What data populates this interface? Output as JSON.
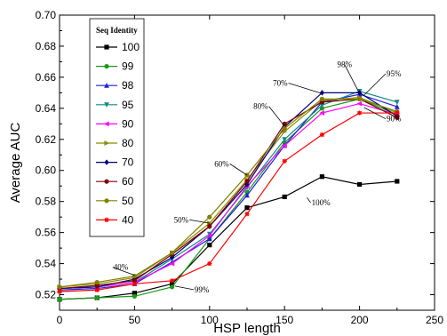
{
  "chart_data": {
    "type": "line",
    "title": "",
    "xlabel": "HSP length",
    "ylabel": "Average AUC",
    "xlim": [
      0,
      250
    ],
    "ylim": [
      0.51,
      0.7
    ],
    "xticks": [
      0,
      50,
      100,
      150,
      200,
      250
    ],
    "yticks": [
      0.52,
      0.54,
      0.56,
      0.58,
      0.6,
      0.62,
      0.64,
      0.66,
      0.68,
      0.7
    ],
    "ytick_labels": [
      "0.52",
      "0.54",
      "0.56",
      "0.58",
      "0.60",
      "0.62",
      "0.64",
      "0.66",
      "0.68",
      "0.70"
    ],
    "x": [
      0,
      25,
      50,
      75,
      100,
      125,
      150,
      175,
      200,
      225
    ],
    "grid": false,
    "legend": {
      "title": "Seq Identity",
      "placement": "top-left"
    },
    "series": [
      {
        "name": "100",
        "color": "#000000",
        "marker": "square",
        "values": [
          0.517,
          0.518,
          0.521,
          0.527,
          0.552,
          0.576,
          0.583,
          0.596,
          0.591,
          0.593
        ]
      },
      {
        "name": "99",
        "color": "#1a9a1a",
        "marker": "circle",
        "values": [
          0.517,
          0.518,
          0.519,
          0.525,
          0.556,
          0.586,
          0.618,
          0.64,
          0.646,
          0.636
        ]
      },
      {
        "name": "98",
        "color": "#1f1fe0",
        "marker": "triangle-up",
        "values": [
          0.523,
          0.524,
          0.527,
          0.541,
          0.556,
          0.584,
          0.616,
          0.644,
          0.649,
          0.641
        ]
      },
      {
        "name": "95",
        "color": "#138a8a",
        "marker": "triangle-down",
        "values": [
          0.524,
          0.525,
          0.528,
          0.543,
          0.559,
          0.589,
          0.62,
          0.642,
          0.651,
          0.644
        ]
      },
      {
        "name": "90",
        "color": "#ff00ff",
        "marker": "triangle-left",
        "values": [
          0.524,
          0.525,
          0.528,
          0.54,
          0.558,
          0.59,
          0.616,
          0.637,
          0.643,
          0.636
        ]
      },
      {
        "name": "80",
        "color": "#8c8c00",
        "marker": "triangle-right",
        "values": [
          0.525,
          0.527,
          0.531,
          0.547,
          0.566,
          0.594,
          0.625,
          0.645,
          0.647,
          0.637
        ]
      },
      {
        "name": "70",
        "color": "#00007a",
        "marker": "diamond",
        "values": [
          0.524,
          0.525,
          0.53,
          0.544,
          0.564,
          0.591,
          0.628,
          0.65,
          0.65,
          0.635
        ]
      },
      {
        "name": "60",
        "color": "#800000",
        "marker": "circle",
        "values": [
          0.524,
          0.526,
          0.529,
          0.546,
          0.564,
          0.593,
          0.63,
          0.644,
          0.646,
          0.634
        ]
      },
      {
        "name": "50",
        "color": "#808000",
        "marker": "circle",
        "values": [
          0.525,
          0.528,
          0.532,
          0.547,
          0.57,
          0.597,
          0.627,
          0.646,
          0.646,
          0.638
        ]
      },
      {
        "name": "40",
        "color": "#ff0000",
        "marker": "star",
        "values": [
          0.522,
          0.523,
          0.527,
          0.529,
          0.54,
          0.572,
          0.606,
          0.623,
          0.637,
          0.637
        ]
      }
    ],
    "annotations": [
      {
        "text": "40%",
        "x": 50,
        "y": 0.5325,
        "tx": 36,
        "ty": 0.536,
        "anchor": "start"
      },
      {
        "text": "50%",
        "x": 100,
        "y": 0.566,
        "tx": 86,
        "ty": 0.5665,
        "anchor": "end"
      },
      {
        "text": "60%",
        "x": 125,
        "y": 0.597,
        "tx": 113,
        "ty": 0.6025,
        "anchor": "end"
      },
      {
        "text": "70%",
        "x": 175,
        "y": 0.6495,
        "tx": 152,
        "ty": 0.6545,
        "anchor": "end"
      },
      {
        "text": "80%",
        "x": 150,
        "y": 0.6285,
        "tx": 139,
        "ty": 0.6395,
        "anchor": "end"
      },
      {
        "text": "98%",
        "x": 200,
        "y": 0.6495,
        "tx": 190,
        "ty": 0.6665,
        "anchor": "middle"
      },
      {
        "text": "95%",
        "x": 203,
        "y": 0.6485,
        "tx": 218,
        "ty": 0.6605,
        "anchor": "start"
      },
      {
        "text": "90%",
        "x": 203,
        "y": 0.6405,
        "tx": 218,
        "ty": 0.6315,
        "anchor": "start"
      },
      {
        "text": "100%",
        "x": 165,
        "y": 0.5825,
        "tx": 168,
        "ty": 0.5775,
        "anchor": "start"
      },
      {
        "text": "99%",
        "x": 77,
        "y": 0.5255,
        "tx": 90,
        "ty": 0.5215,
        "anchor": "start"
      }
    ]
  }
}
